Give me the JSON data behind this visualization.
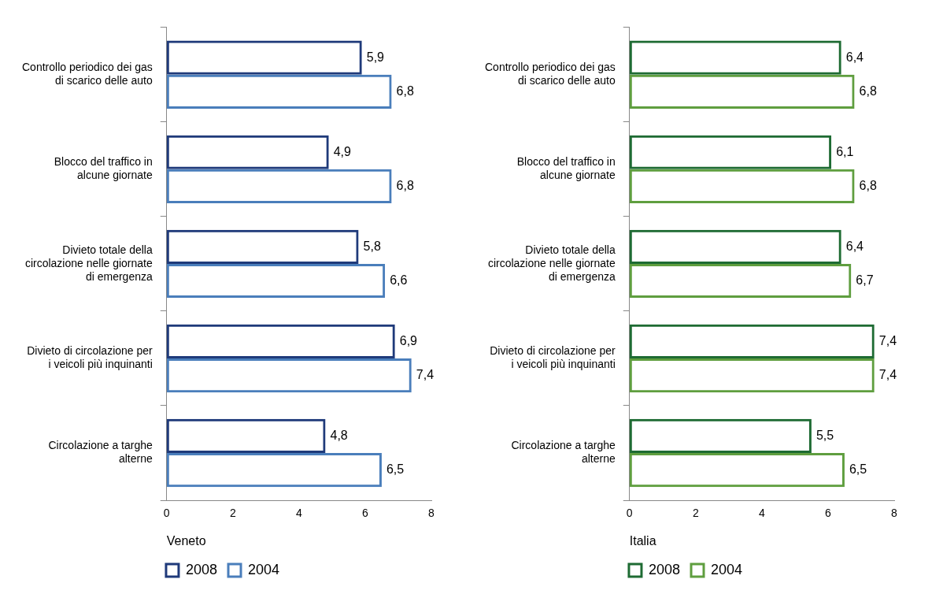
{
  "chart_data": [
    {
      "type": "bar",
      "orientation": "horizontal",
      "xlabel": "Veneto",
      "categories": [
        "Controllo periodico dei gas di scarico delle auto",
        "Blocco del traffico in alcune giornate",
        "Divieto totale della circolazione nelle giornate di emergenza",
        "Divieto di circolazione per i veicoli più inquinanti",
        "Circolazione a targhe alterne"
      ],
      "series": [
        {
          "name": "2008",
          "color": "#1f3a7a",
          "values": [
            5.9,
            4.9,
            5.8,
            6.9,
            4.8
          ],
          "value_labels": [
            "5,9",
            "4,9",
            "5,8",
            "6,9",
            "4,8"
          ]
        },
        {
          "name": "2004",
          "color": "#4a7ebb",
          "values": [
            6.8,
            6.8,
            6.6,
            7.4,
            6.5
          ],
          "value_labels": [
            "6,8",
            "6,8",
            "6,6",
            "7,4",
            "6,5"
          ]
        }
      ],
      "xlim": [
        0,
        8
      ],
      "xticks": [
        0,
        2,
        4,
        6,
        8
      ],
      "grid": false,
      "legend": "bottom"
    },
    {
      "type": "bar",
      "orientation": "horizontal",
      "xlabel": "Italia",
      "categories": [
        "Controllo periodico dei gas di scarico delle auto",
        "Blocco del traffico in alcune giornate",
        "Divieto totale della circolazione nelle giornate di emergenza",
        "Divieto di circolazione per i veicoli più inquinanti",
        "Circolazione a targhe alterne"
      ],
      "series": [
        {
          "name": "2008",
          "color": "#1e6b33",
          "values": [
            6.4,
            6.1,
            6.4,
            7.4,
            5.5
          ],
          "value_labels": [
            "6,4",
            "6,1",
            "6,4",
            "7,4",
            "5,5"
          ]
        },
        {
          "name": "2004",
          "color": "#5f9e3f",
          "values": [
            6.8,
            6.8,
            6.7,
            7.4,
            6.5
          ],
          "value_labels": [
            "6,8",
            "6,8",
            "6,7",
            "7,4",
            "6,5"
          ]
        }
      ],
      "xlim": [
        0,
        8
      ],
      "xticks": [
        0,
        2,
        4,
        6,
        8
      ],
      "grid": false,
      "legend": "bottom"
    }
  ]
}
